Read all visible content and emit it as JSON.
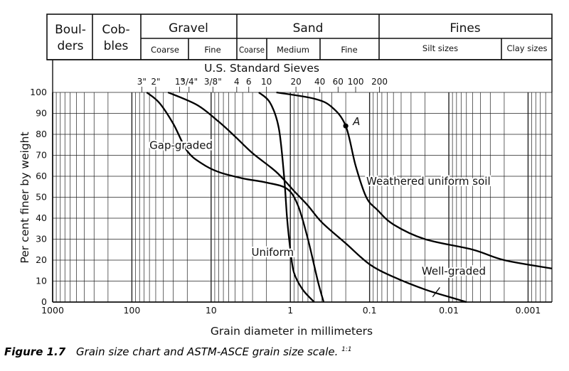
{
  "header": {
    "boulders": [
      "Boul-",
      "ders"
    ],
    "cobbles": [
      "Cob-",
      "bles"
    ],
    "gravel": "Gravel",
    "gravel_coarse": "Coarse",
    "gravel_fine": "Fine",
    "sand": "Sand",
    "sand_coarse": "Coarse",
    "sand_medium": "Medium",
    "sand_fine": "Fine",
    "fines": "Fines",
    "silt": "Silt sizes",
    "clay": "Clay sizes"
  },
  "sieves": {
    "title": "U.S. Standard Sieves",
    "labels": [
      "3\"",
      "2\"",
      "1\"",
      "3/4\"",
      "3/8\"",
      "4",
      "6",
      "10",
      "20",
      "40",
      "60",
      "100",
      "200"
    ]
  },
  "caption": {
    "label": "Figure 1.7",
    "text": "Grain size chart and ASTM-ASCE grain size scale.",
    "sup": "1:1"
  },
  "chart_data": {
    "type": "line",
    "xlabel": "Grain diameter in millimeters",
    "ylabel": "Per cent finer by weight",
    "x_scale": "log",
    "x_reversed": true,
    "xlim": [
      1000,
      0.0005
    ],
    "ylim": [
      0,
      100
    ],
    "x_ticks": [
      1000,
      100,
      10,
      1,
      0.1,
      0.01,
      0.001
    ],
    "x_tick_labels": [
      "1000",
      "100",
      "10",
      "1",
      "0.1",
      "0.01",
      "0.001"
    ],
    "y_ticks": [
      0,
      10,
      20,
      30,
      40,
      50,
      60,
      70,
      80,
      90,
      100
    ],
    "grid": true,
    "series": [
      {
        "name": "Gap-graded",
        "points": [
          [
            65,
            100
          ],
          [
            45,
            95
          ],
          [
            30,
            85
          ],
          [
            20,
            72
          ],
          [
            13,
            66
          ],
          [
            8,
            62
          ],
          [
            4,
            59
          ],
          [
            2,
            57
          ],
          [
            1.1,
            54
          ],
          [
            0.8,
            46
          ],
          [
            0.6,
            30
          ],
          [
            0.45,
            10
          ],
          [
            0.38,
            0
          ]
        ]
      },
      {
        "name": "Weathered uniform soil",
        "points": [
          [
            1.5,
            100
          ],
          [
            0.5,
            97
          ],
          [
            0.3,
            93
          ],
          [
            0.2,
            84
          ],
          [
            0.15,
            65
          ],
          [
            0.11,
            50
          ],
          [
            0.08,
            44
          ],
          [
            0.05,
            37
          ],
          [
            0.02,
            30
          ],
          [
            0.005,
            25
          ],
          [
            0.002,
            20
          ],
          [
            0.0005,
            16
          ]
        ]
      },
      {
        "name": "Uniform",
        "points": [
          [
            2.5,
            100
          ],
          [
            1.8,
            95
          ],
          [
            1.4,
            83
          ],
          [
            1.2,
            60
          ],
          [
            1.1,
            40
          ],
          [
            1.0,
            25
          ],
          [
            0.9,
            14
          ],
          [
            0.7,
            6
          ],
          [
            0.5,
            0
          ]
        ]
      },
      {
        "name": "Well-graded",
        "points": [
          [
            35,
            100
          ],
          [
            15,
            94
          ],
          [
            8,
            86
          ],
          [
            5,
            79
          ],
          [
            3,
            71
          ],
          [
            1.5,
            62
          ],
          [
            0.9,
            53
          ],
          [
            0.6,
            46
          ],
          [
            0.4,
            38
          ],
          [
            0.2,
            28
          ],
          [
            0.1,
            18
          ],
          [
            0.05,
            12
          ],
          [
            0.02,
            6
          ],
          [
            0.009,
            2
          ],
          [
            0.006,
            0
          ]
        ]
      }
    ],
    "curve_labels": {
      "gap": "Gap-graded",
      "weathered": "Weathered uniform soil",
      "uniform": "Uniform",
      "well": "Well-graded"
    },
    "annotations": [
      {
        "text": "A",
        "x": 0.2,
        "y": 84
      }
    ]
  }
}
